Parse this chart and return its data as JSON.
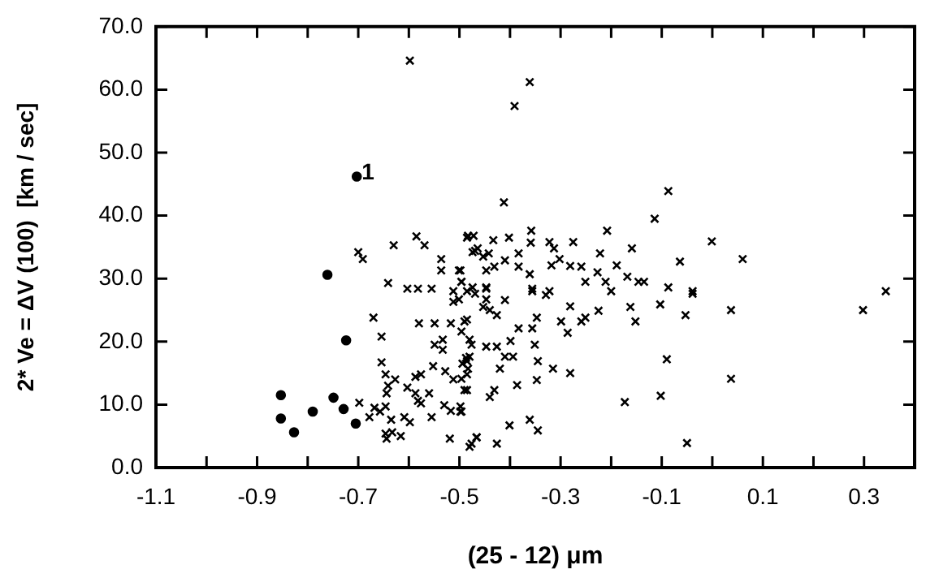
{
  "chart_data": {
    "type": "scatter",
    "xlabel": "(25 - 12) μm",
    "ylabel": "2* Ve = ΔV (100)  [km / sec]",
    "xlim": [
      -1.1,
      0.4
    ],
    "xticks": [
      {
        "value": -1.1,
        "label": "-1.1"
      },
      {
        "value": -1.0,
        "label": null
      },
      {
        "value": -0.9,
        "label": "-0.9"
      },
      {
        "value": -0.8,
        "label": null
      },
      {
        "value": -0.7,
        "label": "-0.7"
      },
      {
        "value": -0.6,
        "label": null
      },
      {
        "value": -0.5,
        "label": "-0.5"
      },
      {
        "value": -0.4,
        "label": null
      },
      {
        "value": -0.3,
        "label": "-0.3"
      },
      {
        "value": -0.2,
        "label": null
      },
      {
        "value": -0.1,
        "label": "-0.1"
      },
      {
        "value": 0,
        "label": null
      },
      {
        "value": 0.1,
        "label": "0.1"
      },
      {
        "value": 0.2,
        "label": null
      },
      {
        "value": 0.3,
        "label": "0.3"
      }
    ],
    "ylim": [
      0,
      70
    ],
    "yticks": [
      {
        "value": 0,
        "label": "0.0"
      },
      {
        "value": 10,
        "label": "10.0"
      },
      {
        "value": 20,
        "label": "20.0"
      },
      {
        "value": 30,
        "label": "30.0"
      },
      {
        "value": 40,
        "label": "40.0"
      },
      {
        "value": 50,
        "label": "50.0"
      },
      {
        "value": 60,
        "label": "60.0"
      },
      {
        "value": 70,
        "label": "70.0"
      }
    ],
    "grid": false,
    "legend": false,
    "annotations": [
      {
        "text": "1",
        "x": -0.703,
        "y": 46.2
      }
    ],
    "series": [
      {
        "color": "#000000",
        "marker": "cross",
        "x": [
          -0.598,
          -0.7,
          -0.691,
          -0.63,
          -0.585,
          -0.569,
          -0.536,
          -0.536,
          -0.498,
          -0.483,
          -0.472,
          -0.474,
          -0.464,
          -0.453,
          -0.641,
          -0.603,
          -0.582,
          -0.555,
          -0.512,
          -0.496,
          -0.474,
          -0.361,
          -0.391,
          -0.412,
          -0.087,
          -0.114,
          -0.208,
          -0.001,
          0.06,
          -0.064,
          -0.159,
          -0.222,
          -0.189,
          -0.275,
          -0.322,
          -0.313,
          -0.358,
          -0.359,
          -0.402,
          -0.433,
          -0.485,
          -0.469,
          -0.442,
          -0.383,
          -0.41,
          -0.431,
          -0.447,
          -0.383,
          -0.361,
          -0.302,
          -0.318,
          -0.281,
          -0.259,
          -0.227,
          -0.251,
          -0.211,
          -0.168,
          -0.146,
          -0.135,
          -0.087,
          -0.039,
          -0.501,
          -0.496,
          -0.447,
          -0.356,
          -0.322,
          -0.2,
          0.343,
          0.298,
          0.037,
          0.037,
          -0.05,
          -0.09,
          -0.102,
          -0.173,
          -0.053,
          -0.039,
          -0.103,
          -0.152,
          -0.162,
          -0.225,
          -0.251,
          -0.259,
          -0.281,
          -0.286,
          -0.299,
          -0.281,
          -0.315,
          -0.345,
          -0.347,
          -0.351,
          -0.347,
          -0.356,
          -0.329,
          -0.356,
          -0.383,
          -0.386,
          -0.401,
          -0.361,
          -0.345,
          -0.394,
          -0.399,
          -0.41,
          -0.42,
          -0.426,
          -0.447,
          -0.431,
          -0.44,
          -0.426,
          -0.466,
          -0.48,
          -0.426,
          -0.44,
          -0.41,
          -0.447,
          -0.48,
          -0.485,
          -0.485,
          -0.485,
          -0.496,
          -0.476,
          -0.49,
          -0.67,
          -0.654,
          -0.698,
          -0.678,
          -0.668,
          -0.657,
          -0.646,
          -0.644,
          -0.641,
          -0.654,
          -0.646,
          -0.627,
          -0.635,
          -0.609,
          -0.598,
          -0.603,
          -0.587,
          -0.582,
          -0.576,
          -0.56,
          -0.587,
          -0.576,
          -0.552,
          -0.549,
          -0.533,
          -0.533,
          -0.528,
          -0.512,
          -0.496,
          -0.494,
          -0.487,
          -0.483,
          -0.49,
          -0.498,
          -0.498,
          -0.517,
          -0.53,
          -0.555,
          -0.519,
          -0.644,
          -0.646,
          -0.616,
          -0.633,
          -0.476,
          -0.466,
          -0.58,
          -0.549,
          -0.517,
          -0.496,
          -0.485,
          -0.48,
          -0.512,
          -0.501,
          -0.485,
          -0.469,
          -0.453,
          -0.447
        ],
        "values": [
          64.6,
          34.2,
          33.1,
          35.3,
          36.7,
          35.3,
          33.1,
          31.3,
          31.3,
          36.8,
          36.8,
          34.2,
          34.8,
          33.5,
          29.3,
          28.4,
          28.4,
          28.4,
          28.0,
          29.5,
          28.6,
          61.2,
          57.4,
          42.1,
          43.9,
          39.5,
          37.6,
          35.9,
          33.1,
          32.7,
          34.8,
          34.0,
          32.1,
          35.8,
          35.8,
          34.8,
          37.6,
          35.7,
          36.5,
          36.1,
          36.5,
          34.4,
          34.0,
          34.0,
          32.9,
          31.9,
          31.3,
          31.9,
          30.7,
          33.1,
          32.1,
          32.0,
          31.9,
          31.0,
          29.5,
          29.5,
          30.3,
          29.5,
          29.5,
          28.6,
          28.0,
          31.3,
          29.5,
          28.4,
          28.4,
          28.0,
          28.0,
          28.0,
          25.0,
          25.0,
          14.1,
          3.9,
          17.2,
          11.4,
          10.4,
          24.2,
          27.6,
          25.9,
          23.2,
          25.5,
          24.9,
          23.8,
          23.2,
          25.6,
          21.4,
          23.2,
          15.0,
          15.7,
          16.9,
          13.9,
          19.5,
          23.8,
          22.1,
          27.4,
          28.0,
          22.1,
          13.1,
          6.7,
          7.6,
          5.9,
          17.6,
          20.1,
          17.6,
          15.7,
          19.2,
          19.2,
          12.3,
          11.2,
          3.8,
          4.8,
          3.3,
          24.2,
          25.0,
          26.6,
          26.7,
          17.6,
          16.9,
          14.8,
          12.3,
          8.9,
          19.5,
          23.2,
          23.8,
          20.8,
          10.3,
          8.0,
          9.5,
          8.9,
          9.7,
          11.8,
          13.0,
          16.7,
          14.8,
          14.0,
          7.6,
          8.0,
          7.2,
          12.7,
          11.8,
          10.6,
          10.2,
          11.8,
          14.4,
          14.8,
          16.1,
          19.5,
          20.3,
          18.7,
          15.3,
          14.0,
          14.1,
          16.5,
          17.4,
          15.7,
          12.3,
          9.7,
          8.9,
          9.0,
          9.9,
          8.0,
          4.6,
          4.6,
          5.4,
          5.0,
          5.6,
          3.8,
          4.8,
          22.9,
          22.9,
          22.9,
          21.6,
          23.5,
          20.3,
          26.3,
          26.7,
          28.0,
          27.6,
          25.5,
          28.6
        ]
      },
      {
        "color": "#000000",
        "marker": "circle",
        "x": [
          -0.703,
          -0.761,
          -0.724,
          -0.853,
          -0.853,
          -0.827,
          -0.79,
          -0.749,
          -0.729,
          -0.705
        ],
        "values": [
          46.2,
          30.6,
          20.2,
          11.5,
          7.8,
          5.6,
          8.9,
          11.1,
          9.3,
          7.0
        ]
      }
    ]
  }
}
